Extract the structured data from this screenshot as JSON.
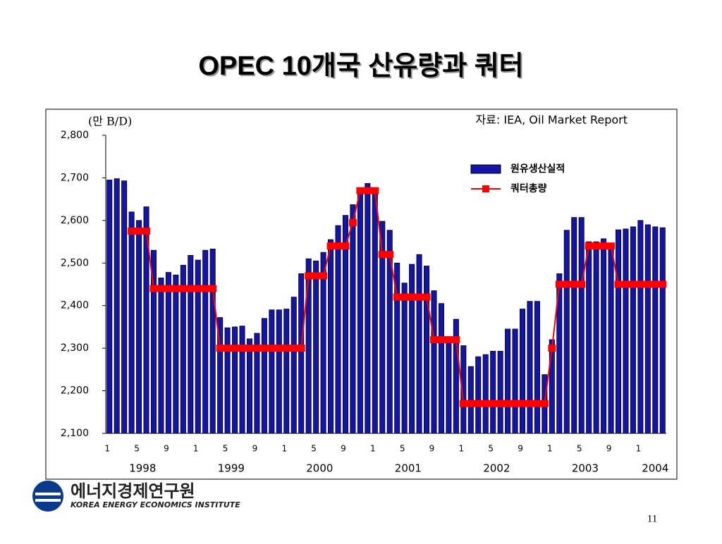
{
  "chart_data": {
    "type": "bar",
    "title": "OPEC 10개국 산유량과 쿼터",
    "y_unit": "(만 B/D)",
    "source": "자료: IEA, Oil Market Report",
    "categories": [
      "1",
      null,
      null,
      null,
      "5",
      null,
      null,
      null,
      "9",
      null,
      null,
      null,
      "1",
      null,
      null,
      null,
      "5",
      null,
      null,
      null,
      "9",
      null,
      null,
      null,
      "1",
      null,
      null,
      null,
      "5",
      null,
      null,
      null,
      "9",
      null,
      null,
      null,
      "1",
      null,
      null,
      null,
      "5",
      null,
      null,
      null,
      "9",
      null,
      null,
      null,
      "1",
      null,
      null,
      null,
      "5",
      null,
      null,
      null,
      "9",
      null,
      null,
      null,
      "1",
      null,
      null,
      null,
      "5",
      null,
      null,
      null,
      "9",
      null,
      null,
      null,
      "1",
      null,
      null,
      null
    ],
    "years": [
      "1998",
      "1999",
      "2000",
      "2001",
      "2002",
      "2003",
      "2004"
    ],
    "series": [
      {
        "name": "원유생산실적",
        "type": "bar",
        "color": "#1414a8",
        "values": [
          2695,
          2698,
          2693,
          2620,
          2600,
          2632,
          2530,
          2465,
          2478,
          2472,
          2495,
          2518,
          2507,
          2530,
          2533,
          2372,
          2348,
          2350,
          2352,
          2322,
          2335,
          2370,
          2390,
          2390,
          2392,
          2420,
          2475,
          2510,
          2505,
          2525,
          2555,
          2588,
          2612,
          2637,
          2665,
          2687,
          2670,
          2598,
          2577,
          2500,
          2453,
          2497,
          2520,
          2493,
          2435,
          2405,
          2320,
          2368,
          2306,
          2257,
          2280,
          2285,
          2293,
          2293,
          2345,
          2345,
          2392,
          2410,
          2410,
          2238,
          2320,
          2475,
          2577,
          2607,
          2607,
          2550,
          2550,
          2557,
          2545,
          2578,
          2580,
          2585,
          2600,
          2590,
          2585,
          2583
        ]
      },
      {
        "name": "쿼터총량",
        "type": "line",
        "color": "#ff0000",
        "values": [
          null,
          null,
          null,
          2575,
          2575,
          2575,
          2440,
          2440,
          2440,
          2440,
          2440,
          2440,
          2440,
          2440,
          2440,
          2300,
          2300,
          2300,
          2300,
          2300,
          2300,
          2300,
          2300,
          2300,
          2300,
          2300,
          2300,
          2470,
          2470,
          2470,
          2540,
          2540,
          2540,
          2595,
          2670,
          2670,
          2670,
          2520,
          2520,
          2420,
          2420,
          2420,
          2420,
          2420,
          2320,
          2320,
          2320,
          2320,
          2170,
          2170,
          2170,
          2170,
          2170,
          2170,
          2170,
          2170,
          2170,
          2170,
          2170,
          2170,
          2300,
          2450,
          2450,
          2450,
          2450,
          2540,
          2540,
          2540,
          2540,
          2450,
          2450,
          2450,
          2450,
          2450,
          2450,
          2450
        ]
      }
    ],
    "ylim": [
      2100,
      2800
    ],
    "yticks": [
      {
        "value": 2100,
        "label": "2,100"
      },
      {
        "value": 2200,
        "label": "2,200"
      },
      {
        "value": 2300,
        "label": "2,300"
      },
      {
        "value": 2400,
        "label": "2,400"
      },
      {
        "value": 2500,
        "label": "2,500"
      },
      {
        "value": 2600,
        "label": "2,600"
      },
      {
        "value": 2700,
        "label": "2,700"
      },
      {
        "value": 2800,
        "label": "2,800"
      }
    ],
    "legend": "upper right"
  },
  "logo": {
    "name": "에너지경제연구원",
    "english": "KOREA ENERGY ECONOMICS INSTITUTE"
  },
  "page_number": "11"
}
